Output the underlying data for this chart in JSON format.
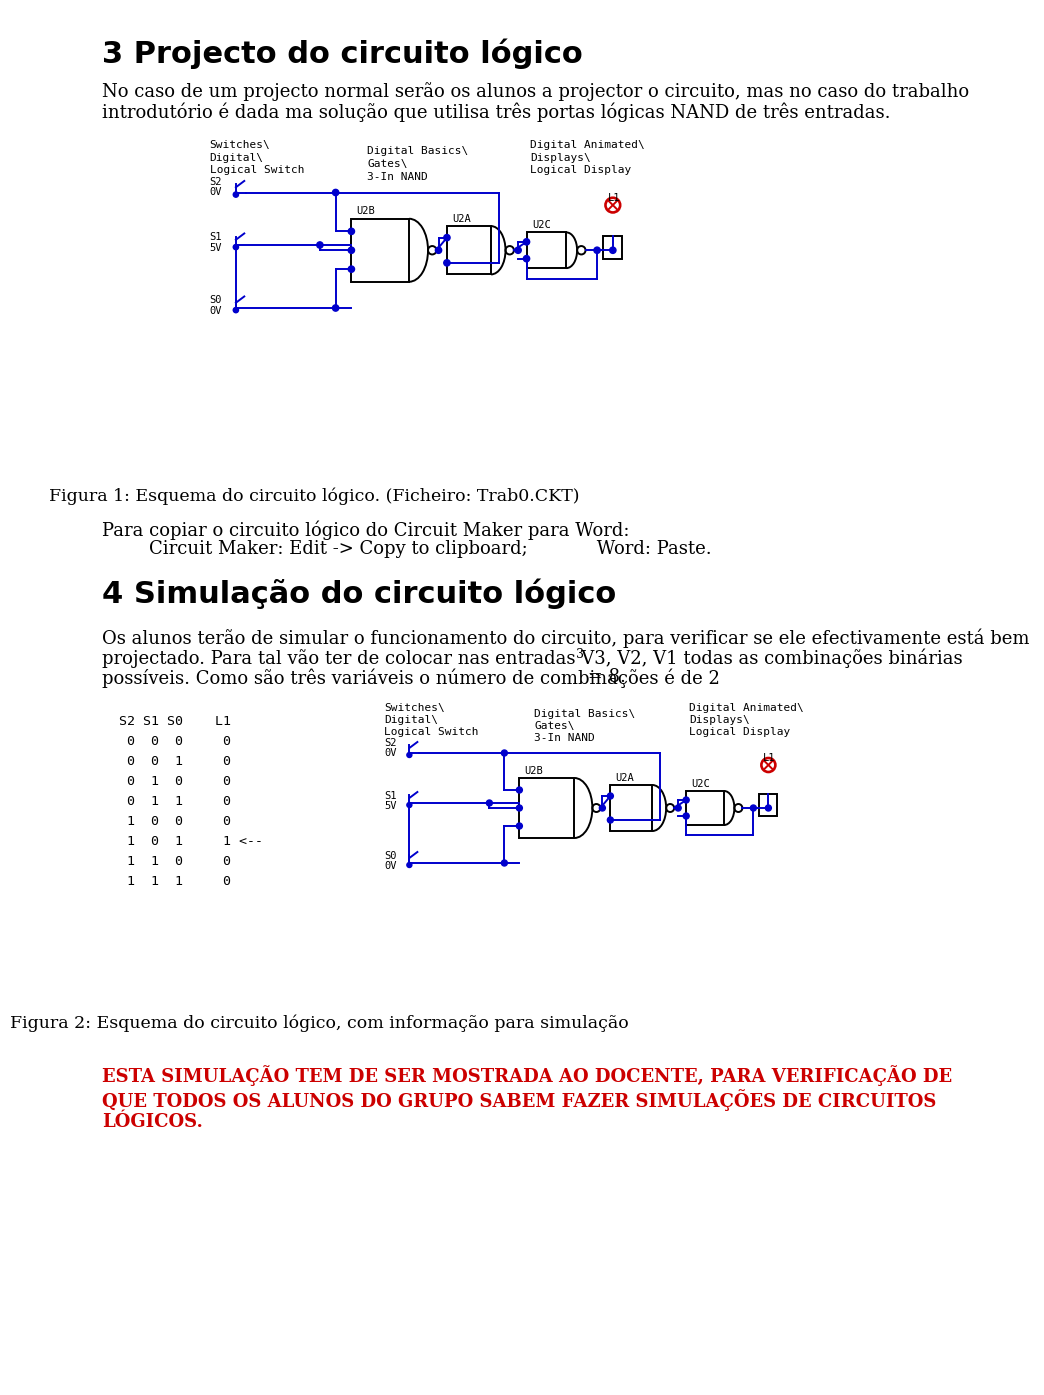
{
  "title_section3": "3 Projecto do circuito lógico",
  "para1_line1": "No caso de um projecto normal serão os alunos a projector o circuito, mas no caso do trabalho",
  "para1_line2": "introdutório é dada ma solução que utilisa três portas lógicas NAND de três entradas.",
  "fig1_caption": "Figura 1: Esquema do circuito lógico. (Ficheiro: Trab0.CKT)",
  "para2_line1": "Para copiar o circuito lógico do Circuit Maker para Word:",
  "para2_line2": "Circuit Maker: Edit -> Copy to clipboard;            Word: Paste.",
  "title_section4": "4 Simulação do circuito lógico",
  "para3_line1": "Os alunos terão de simular o funcionamento do circuito, para verificar se ele efectivamente está bem",
  "para3_line2": "projectado. Para tal vão ter de colocar nas entradas V3, V2, V1 todas as combinações binárias",
  "para3_line3_pre": "possíveis. Como são três variáveis o número de combinações é de 2",
  "para3_line3_sup": "3",
  "para3_line3_post": " = 8.",
  "fig2_caption": "Figura 2: Esquema do circuito lógico, com informação para simulação",
  "warning_line1": "ESTA SIMULAÇÃO TEM DE SER MOSTRADA AO DOCENTE, PARA VERIFICAÇÃO DE",
  "warning_line2": "QUE TODOS OS ALUNOS DO GRUPO SABEM FAZER SIMULAÇÕES DE CIRCUITOS",
  "warning_line3": "LÓGICOS.",
  "warning_color": "#CC0000",
  "bg_color": "#ffffff",
  "text_color": "#000000",
  "blue_color": "#0000CC",
  "monospace_labels_fig1": [
    [
      "Switches\\",
      137,
      170
    ],
    [
      "Digital\\",
      137,
      182
    ],
    [
      "Logical Switch",
      137,
      194
    ],
    [
      "Digital Basics\\",
      305,
      176
    ],
    [
      "Gates\\",
      305,
      188
    ],
    [
      "3-In NAND",
      305,
      200
    ],
    [
      "Digital Animated\\",
      480,
      170
    ],
    [
      "Displays\\",
      480,
      182
    ],
    [
      "Logical Display",
      480,
      194
    ]
  ],
  "switch_labels_fig1": [
    [
      "S2",
      160,
      214
    ],
    [
      "0V",
      160,
      224
    ],
    [
      "S1",
      160,
      278
    ],
    [
      "5V",
      160,
      288
    ],
    [
      "S0",
      160,
      355
    ],
    [
      "0V",
      160,
      365
    ]
  ],
  "gate_labels_fig1": [
    [
      "U2B",
      320,
      263
    ],
    [
      "U2A",
      425,
      263
    ],
    [
      "U2C",
      530,
      263
    ],
    [
      "L1",
      638,
      217
    ]
  ]
}
